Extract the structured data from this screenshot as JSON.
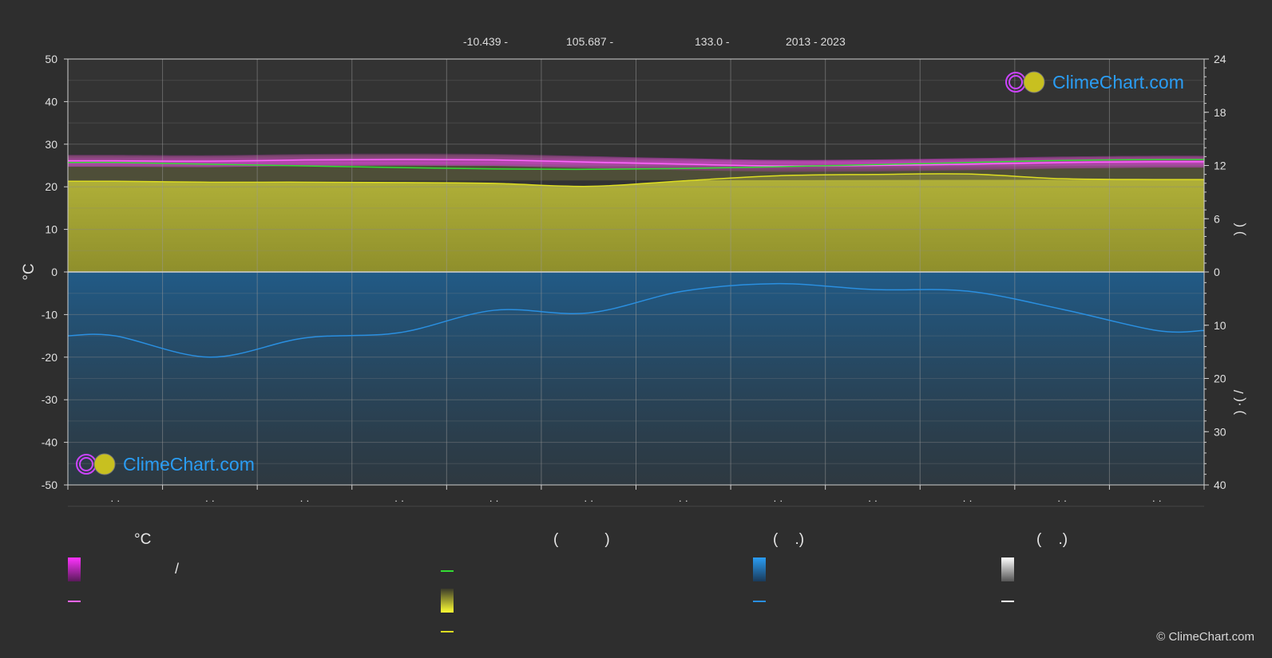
{
  "header": {
    "lat": "-10.439 -",
    "lon": "105.687 -",
    "elev": "133.0 -",
    "years": "2013 - 2023"
  },
  "chart_data": {
    "type": "line",
    "left_axis": {
      "label": "°C",
      "ticks": [
        50,
        40,
        30,
        20,
        10,
        0,
        -10,
        -20,
        -30,
        -40,
        -50
      ],
      "ylim": [
        -50,
        50
      ]
    },
    "right_axis_top": {
      "label": ")      (",
      "ticks": [
        24,
        18,
        12,
        6,
        0
      ],
      "ylim": [
        0,
        24
      ]
    },
    "right_axis_bottom": {
      "label": ")   ·(    /",
      "ticks": [
        0,
        10,
        20,
        30,
        40
      ],
      "ylim": [
        0,
        40
      ]
    },
    "x_tick_labels": [
      "· ·",
      "· ·",
      "· ·",
      "· ·",
      "· ·",
      "· ·",
      "· ·",
      "· ·",
      "· ·",
      "· ·",
      "· ·",
      "· ·"
    ],
    "months": 12,
    "grid": true,
    "series": [
      {
        "values": [
          26.1,
          26.0,
          26.3,
          26.4,
          26.3,
          25.8,
          25.3,
          24.9,
          25.0,
          25.3,
          25.7,
          25.9
        ],
        "color": "#ff66ff"
      },
      {
        "values": [
          25.7,
          25.3,
          24.9,
          24.5,
          24.2,
          24.1,
          24.3,
          24.7,
          25.2,
          25.7,
          26.2,
          26.4
        ],
        "color": "#33dd33"
      },
      {
        "values": [
          21.3,
          21.1,
          21.1,
          21.0,
          20.8,
          20.1,
          21.4,
          22.6,
          22.9,
          23.0,
          21.9,
          21.7
        ],
        "color": "#dddd22"
      },
      {
        "values": [
          12.0,
          16.0,
          12.4,
          11.4,
          7.2,
          7.7,
          3.6,
          2.2,
          3.3,
          3.6,
          7.0,
          11.0
        ],
        "color": "#2a8fe0"
      }
    ]
  },
  "legend": {
    "headers": [
      "°C",
      "(           )",
      "(    .)",
      "(    .)"
    ],
    "slash": "/"
  },
  "logo_text": "ClimeChart.com",
  "copyright": "© ClimeChart.com"
}
